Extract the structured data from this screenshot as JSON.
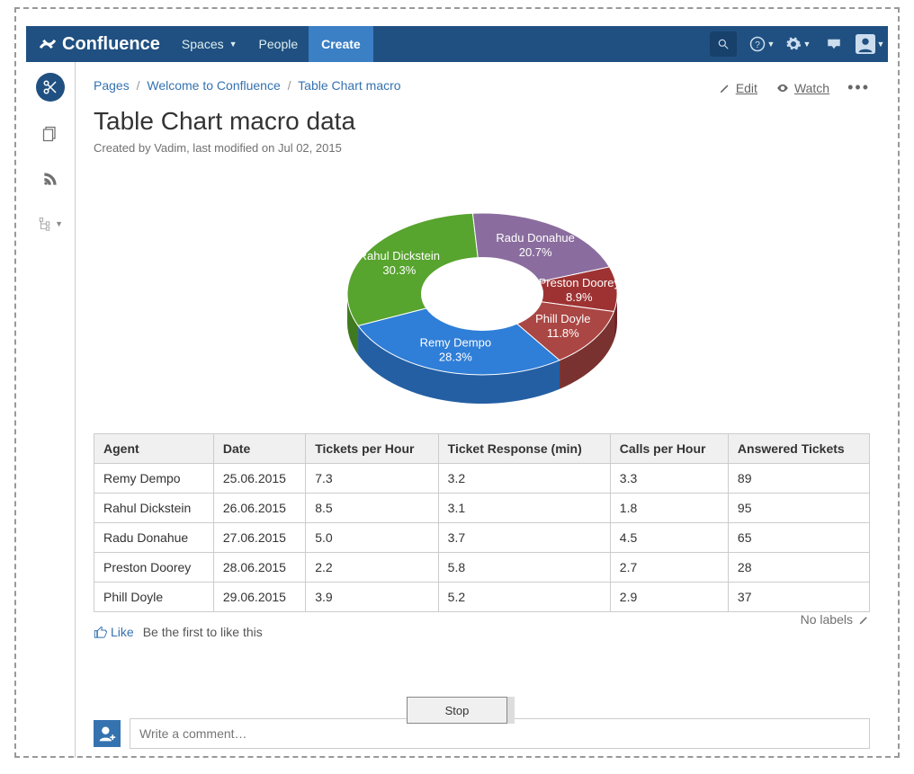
{
  "app": {
    "name": "Confluence"
  },
  "nav": {
    "spaces": "Spaces",
    "people": "People",
    "create": "Create"
  },
  "breadcrumb": {
    "pages": "Pages",
    "welcome": "Welcome to Confluence",
    "current": "Table Chart macro"
  },
  "actions": {
    "edit": "Edit",
    "watch": "Watch"
  },
  "page": {
    "title": "Table Chart macro data",
    "meta": "Created by Vadim, last modified on Jul 02, 2015"
  },
  "chart": {
    "type": "donut-3d",
    "background": "#ffffff",
    "inner_radius_ratio": 0.45,
    "slices": [
      {
        "label": "Remy Dempo",
        "pct": "28.3%",
        "value": 28.3,
        "color": "#2f7ed8",
        "dark": "#245fa3"
      },
      {
        "label": "Rahul Dickstein",
        "pct": "30.3%",
        "value": 30.3,
        "color": "#57a42e",
        "dark": "#3f7a20"
      },
      {
        "label": "Radu Donahue",
        "pct": "20.7%",
        "value": 20.7,
        "color": "#8a6d9e",
        "dark": "#6a527a"
      },
      {
        "label": "Preston Doorey",
        "pct": "8.9%",
        "value": 8.9,
        "color": "#9e3232",
        "dark": "#6f2424"
      },
      {
        "label": "Phill Doyle",
        "pct": "11.8%",
        "value": 11.8,
        "color": "#aa4643",
        "dark": "#7a3230"
      }
    ]
  },
  "table": {
    "columns": [
      "Agent",
      "Date",
      "Tickets per Hour",
      "Ticket Response (min)",
      "Calls per Hour",
      "Answered Tickets"
    ],
    "rows": [
      [
        "Remy Dempo",
        "25.06.2015",
        "7.3",
        "3.2",
        "3.3",
        "89"
      ],
      [
        "Rahul Dickstein",
        "26.06.2015",
        "8.5",
        "3.1",
        "1.8",
        "95"
      ],
      [
        "Radu Donahue",
        "27.06.2015",
        "5.0",
        "3.7",
        "4.5",
        "65"
      ],
      [
        "Preston Doorey",
        "28.06.2015",
        "2.2",
        "5.8",
        "2.7",
        "28"
      ],
      [
        "Phill Doyle",
        "29.06.2015",
        "3.9",
        "5.2",
        "2.9",
        "37"
      ]
    ]
  },
  "footer": {
    "like": "Like",
    "like_status": "Be the first to like this",
    "no_labels": "No labels"
  },
  "comment": {
    "placeholder": "Write a comment…"
  },
  "stop": "Stop"
}
